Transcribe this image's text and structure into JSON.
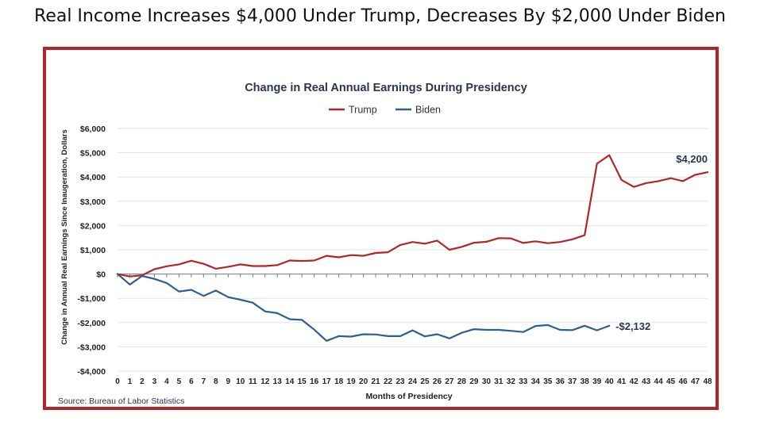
{
  "headline": "Real Income Increases $4,000 Under Trump, Decreases By $2,000 Under Biden",
  "chart_data": {
    "type": "line",
    "title": "Change in Real Annual Earnings During Presidency",
    "xlabel": "Months of Presidency",
    "ylabel": "Change in Annual Real Earnings Since Inaugeration, Dollars",
    "ylim": [
      -4000,
      6000
    ],
    "xlim": [
      0,
      48
    ],
    "y_ticks": [
      6000,
      5000,
      4000,
      3000,
      2000,
      1000,
      0,
      -1000,
      -2000,
      -3000,
      -4000
    ],
    "y_tick_labels": [
      "$6,000",
      "$5,000",
      "$4,000",
      "$3,000",
      "$2,000",
      "$1,000",
      "$0",
      "-$1,000",
      "-$2,000",
      "-$3,000",
      "-$4,000"
    ],
    "legend_position": "top-center",
    "grid": true,
    "source": "Source: Bureau of Labor Statistics",
    "series": [
      {
        "name": "Trump",
        "color": "#b1262b",
        "x": [
          0,
          1,
          2,
          3,
          4,
          5,
          6,
          7,
          8,
          9,
          10,
          11,
          12,
          13,
          14,
          15,
          16,
          17,
          18,
          19,
          20,
          21,
          22,
          23,
          24,
          25,
          26,
          27,
          28,
          29,
          30,
          31,
          32,
          33,
          34,
          35,
          36,
          37,
          38,
          39,
          40,
          41,
          42,
          43,
          44,
          45,
          46,
          47,
          48
        ],
        "values": [
          0,
          -100,
          -50,
          200,
          320,
          400,
          550,
          420,
          220,
          300,
          400,
          330,
          330,
          370,
          560,
          540,
          560,
          750,
          690,
          780,
          750,
          870,
          900,
          1200,
          1320,
          1250,
          1380,
          1000,
          1120,
          1290,
          1330,
          1480,
          1470,
          1280,
          1350,
          1270,
          1320,
          1430,
          1600,
          4550,
          4900,
          3880,
          3590,
          3750,
          3830,
          3950,
          3830,
          4090,
          4200
        ],
        "end_label": "$4,200"
      },
      {
        "name": "Biden",
        "color": "#2d5f94",
        "x": [
          0,
          1,
          2,
          3,
          4,
          5,
          6,
          7,
          8,
          9,
          10,
          11,
          12,
          13,
          14,
          15,
          16,
          17,
          18,
          19,
          20,
          21,
          22,
          23,
          24,
          25,
          26,
          27,
          28,
          29,
          30,
          31,
          32,
          33,
          34,
          35,
          36,
          37,
          38,
          39,
          40
        ],
        "values": [
          0,
          -430,
          -80,
          -200,
          -370,
          -720,
          -650,
          -900,
          -680,
          -950,
          -1060,
          -1180,
          -1540,
          -1610,
          -1860,
          -1890,
          -2290,
          -2750,
          -2560,
          -2580,
          -2480,
          -2490,
          -2560,
          -2560,
          -2320,
          -2570,
          -2480,
          -2650,
          -2420,
          -2270,
          -2300,
          -2300,
          -2340,
          -2390,
          -2140,
          -2100,
          -2300,
          -2310,
          -2130,
          -2320,
          -2132
        ],
        "end_label": "-$2,132"
      }
    ]
  }
}
